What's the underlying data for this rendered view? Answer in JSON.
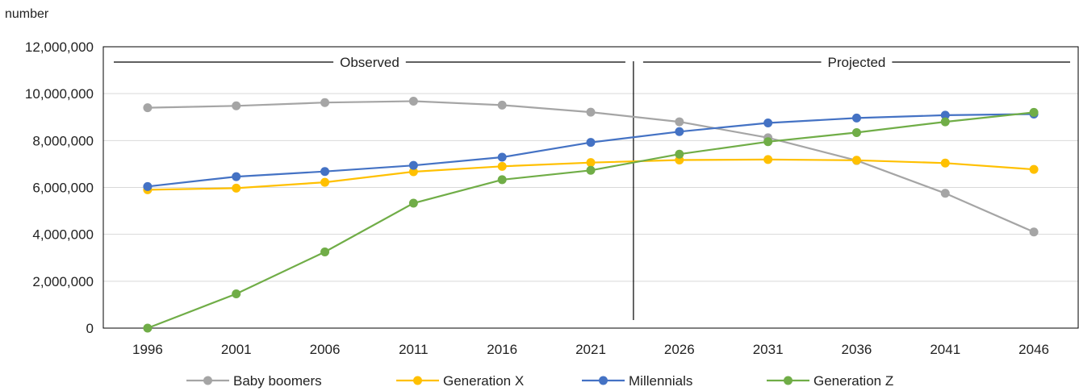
{
  "chart_data": {
    "type": "line",
    "ylabel": "number",
    "x": [
      "1996",
      "2001",
      "2006",
      "2011",
      "2016",
      "2021",
      "2026",
      "2031",
      "2036",
      "2041",
      "2046"
    ],
    "ylim": [
      0,
      12000000
    ],
    "yticks": [
      0,
      2000000,
      4000000,
      6000000,
      8000000,
      10000000,
      12000000
    ],
    "ytick_labels": [
      "0",
      "2,000,000",
      "4,000,000",
      "6,000,000",
      "8,000,000",
      "10,000,000",
      "12,000,000"
    ],
    "grid": true,
    "legend_position": "bottom",
    "regions": [
      {
        "label": "Observed",
        "from": "1996",
        "to": "2021"
      },
      {
        "label": "Projected",
        "from": "2026",
        "to": "2046"
      }
    ],
    "series": [
      {
        "name": "Baby boomers",
        "color": "#a5a5a5",
        "values": [
          9400000,
          9480000,
          9620000,
          9680000,
          9510000,
          9210000,
          8800000,
          8120000,
          7150000,
          5750000,
          4100000
        ]
      },
      {
        "name": "Generation X",
        "color": "#ffc000",
        "values": [
          5900000,
          5970000,
          6220000,
          6670000,
          6900000,
          7060000,
          7170000,
          7190000,
          7160000,
          7040000,
          6770000
        ]
      },
      {
        "name": "Millennials",
        "color": "#4472c4",
        "values": [
          6040000,
          6460000,
          6680000,
          6940000,
          7290000,
          7920000,
          8380000,
          8750000,
          8960000,
          9080000,
          9130000
        ]
      },
      {
        "name": "Generation Z",
        "color": "#70ad47",
        "values": [
          0,
          1460000,
          3250000,
          5330000,
          6330000,
          6730000,
          7420000,
          7950000,
          8340000,
          8800000,
          9200000
        ]
      }
    ]
  }
}
